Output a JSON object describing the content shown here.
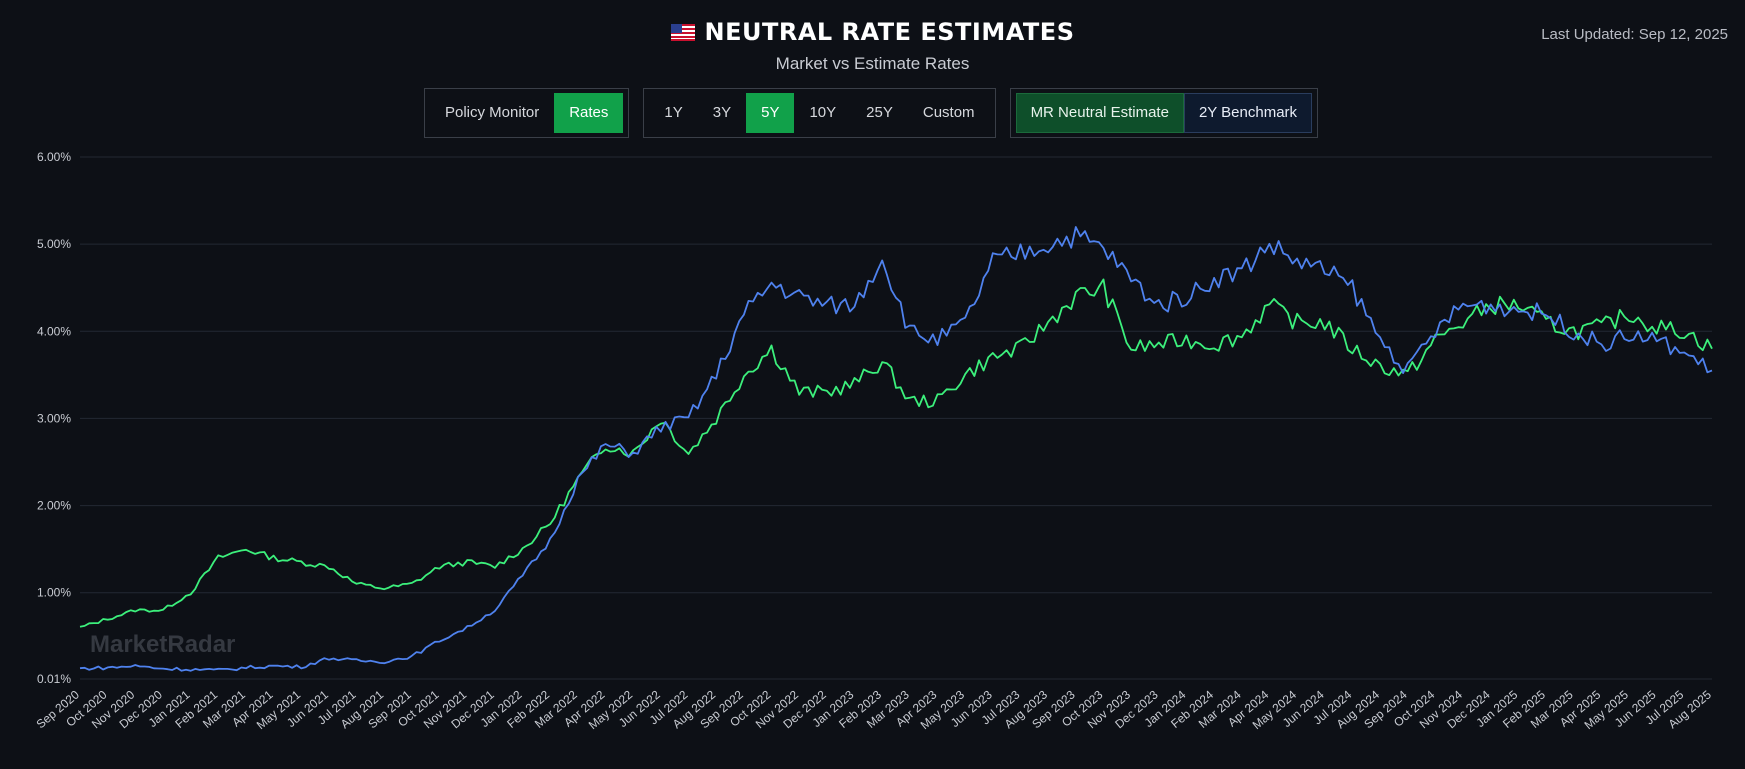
{
  "header": {
    "title": "NEUTRAL RATE ESTIMATES",
    "subtitle": "Market vs Estimate Rates",
    "last_updated": "Last Updated: Sep 12, 2025",
    "flag_icon": "us-flag-icon"
  },
  "view_toggle": {
    "items": [
      "Policy Monitor",
      "Rates"
    ],
    "active": "Rates"
  },
  "range_toggle": {
    "items": [
      "1Y",
      "3Y",
      "5Y",
      "10Y",
      "25Y",
      "Custom"
    ],
    "active": "5Y"
  },
  "series_toggle": {
    "items": [
      "MR Neutral Estimate",
      "2Y Benchmark"
    ]
  },
  "colors": {
    "background": "#0d1016",
    "green": "#3cf07c",
    "blue": "#4f82ee",
    "accent": "#11a14a"
  },
  "watermark": "MarketRadar",
  "chart_data": {
    "type": "line",
    "title": "",
    "xlabel": "",
    "ylabel": "",
    "ylim": [
      0.01,
      6.0
    ],
    "y_ticks": [
      "0.01%",
      "1.00%",
      "2.00%",
      "3.00%",
      "4.00%",
      "5.00%",
      "6.00%"
    ],
    "categories": [
      "Sep 2020",
      "Oct 2020",
      "Nov 2020",
      "Dec 2020",
      "Jan 2021",
      "Feb 2021",
      "Mar 2021",
      "Apr 2021",
      "May 2021",
      "Jun 2021",
      "Jul 2021",
      "Aug 2021",
      "Sep 2021",
      "Oct 2021",
      "Nov 2021",
      "Dec 2021",
      "Jan 2022",
      "Feb 2022",
      "Mar 2022",
      "Apr 2022",
      "May 2022",
      "Jun 2022",
      "Jul 2022",
      "Aug 2022",
      "Sep 2022",
      "Oct 2022",
      "Nov 2022",
      "Dec 2022",
      "Jan 2023",
      "Feb 2023",
      "Mar 2023",
      "Apr 2023",
      "May 2023",
      "Jun 2023",
      "Jul 2023",
      "Aug 2023",
      "Sep 2023",
      "Oct 2023",
      "Nov 2023",
      "Dec 2023",
      "Jan 2024",
      "Feb 2024",
      "Mar 2024",
      "Apr 2024",
      "May 2024",
      "Jun 2024",
      "Jul 2024",
      "Aug 2024",
      "Sep 2024",
      "Oct 2024",
      "Nov 2024",
      "Dec 2024",
      "Jan 2025",
      "Feb 2025",
      "Mar 2025",
      "Apr 2025",
      "May 2025",
      "Jun 2025",
      "Jul 2025",
      "Aug 2025"
    ],
    "series": [
      {
        "name": "MR Neutral Estimate",
        "color": "#3cf07c",
        "values": [
          0.6,
          0.7,
          0.8,
          0.8,
          1.0,
          1.4,
          1.5,
          1.4,
          1.35,
          1.3,
          1.1,
          1.05,
          1.1,
          1.3,
          1.35,
          1.3,
          1.5,
          1.8,
          2.3,
          2.7,
          2.6,
          3.0,
          2.6,
          3.0,
          3.5,
          3.8,
          3.3,
          3.3,
          3.4,
          3.65,
          3.2,
          3.2,
          3.5,
          3.7,
          3.8,
          4.1,
          4.4,
          4.5,
          3.8,
          3.85,
          3.9,
          3.85,
          3.95,
          4.3,
          4.1,
          4.1,
          3.8,
          3.6,
          3.5,
          3.9,
          4.1,
          4.3,
          4.3,
          4.1,
          4.0,
          4.05,
          4.2,
          4.05,
          4.0,
          3.8
        ]
      },
      {
        "name": "2Y Benchmark",
        "color": "#4f82ee",
        "values": [
          0.13,
          0.14,
          0.16,
          0.13,
          0.12,
          0.11,
          0.14,
          0.16,
          0.15,
          0.25,
          0.22,
          0.21,
          0.27,
          0.45,
          0.6,
          0.8,
          1.2,
          1.6,
          2.3,
          2.7,
          2.6,
          2.9,
          3.0,
          3.5,
          4.2,
          4.55,
          4.4,
          4.3,
          4.3,
          4.85,
          4.0,
          3.9,
          4.1,
          4.8,
          4.9,
          5.0,
          5.1,
          4.95,
          4.6,
          4.3,
          4.4,
          4.6,
          4.7,
          5.0,
          4.8,
          4.7,
          4.5,
          3.9,
          3.55,
          4.0,
          4.3,
          4.3,
          4.25,
          4.2,
          4.0,
          3.85,
          3.95,
          3.9,
          3.75,
          3.55
        ]
      }
    ]
  }
}
